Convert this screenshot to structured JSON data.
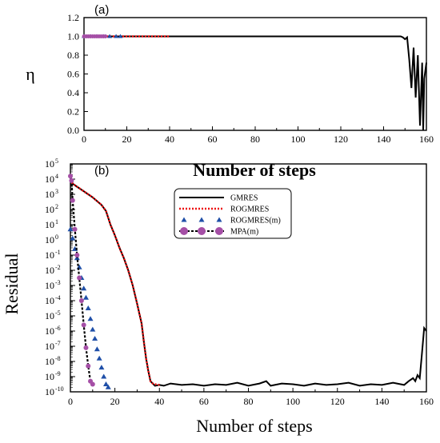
{
  "chart_data": [
    {
      "panel": "(a)",
      "type": "line",
      "xlabel": "Number of steps",
      "ylabel": "η",
      "xlim": [
        0,
        160
      ],
      "ylim": [
        0,
        1.2
      ],
      "xticks": [
        "0",
        "20",
        "40",
        "60",
        "80",
        "100",
        "120",
        "140",
        "160"
      ],
      "yticks": [
        "0.0",
        "0.2",
        "0.4",
        "0.6",
        "0.8",
        "1.0",
        "1.2"
      ],
      "series": [
        {
          "name": "GMRES",
          "color": "#000000",
          "points": [
            [
              0,
              1
            ],
            [
              10,
              1
            ],
            [
              40,
              1
            ],
            [
              80,
              1
            ],
            [
              120,
              1
            ],
            [
              148,
              1
            ],
            [
              149,
              0.99
            ],
            [
              150,
              0.97
            ],
            [
              151,
              0.99
            ],
            [
              152,
              0.75
            ],
            [
              153,
              0.45
            ],
            [
              154,
              0.88
            ],
            [
              155,
              0.35
            ],
            [
              156,
              0.8
            ],
            [
              157,
              0.05
            ],
            [
              158,
              0.72
            ],
            [
              158.5,
              0.0
            ],
            [
              159,
              0.55
            ],
            [
              160,
              0.72
            ]
          ]
        },
        {
          "name": "ROGMRES",
          "color": "#ee1111",
          "points": [
            [
              0,
              1
            ],
            [
              5,
              1
            ],
            [
              10,
              1
            ],
            [
              15,
              1
            ],
            [
              20,
              1
            ],
            [
              25,
              1
            ],
            [
              30,
              1
            ],
            [
              35,
              1
            ],
            [
              40,
              1
            ]
          ]
        },
        {
          "name": "ROGMRES(m)",
          "color": "#1f4fa8",
          "points": [
            [
              0,
              1
            ],
            [
              3,
              1
            ],
            [
              6,
              1
            ],
            [
              9,
              1
            ],
            [
              12,
              1
            ],
            [
              15,
              1
            ],
            [
              17,
              1
            ]
          ]
        },
        {
          "name": "MPA(m)",
          "color": "#a54fa6",
          "points": [
            [
              0,
              1
            ],
            [
              1,
              1
            ],
            [
              2,
              1
            ],
            [
              3,
              1
            ],
            [
              4,
              1
            ],
            [
              5,
              1
            ],
            [
              6,
              1
            ],
            [
              7,
              1
            ],
            [
              8,
              1
            ],
            [
              9,
              1
            ],
            [
              10,
              1
            ]
          ]
        }
      ]
    },
    {
      "panel": "(b)",
      "type": "line",
      "xlabel": "Number of steps",
      "ylabel": "Residual",
      "xlim": [
        0,
        160
      ],
      "ylim": [
        -10,
        5
      ],
      "yscale": "log",
      "xticks": [
        "0",
        "20",
        "40",
        "60",
        "80",
        "100",
        "120",
        "140",
        "160"
      ],
      "ytick_exponents": [
        5,
        4,
        3,
        2,
        1,
        0,
        -1,
        -2,
        -3,
        -4,
        -5,
        -6,
        -7,
        -8,
        -9,
        -10
      ],
      "legend": {
        "position": "top-center",
        "entries": [
          "GMRES",
          "ROGMRES",
          "ROGMRES(m)",
          "MPA(m)"
        ]
      },
      "series": [
        {
          "name": "GMRES",
          "color": "#000000",
          "style": "solid",
          "points_log10": [
            [
              0,
              4.2
            ],
            [
              1,
              3.7
            ],
            [
              3,
              3.5
            ],
            [
              6,
              3.2
            ],
            [
              10,
              2.8
            ],
            [
              14,
              2.3
            ],
            [
              16,
              1.9
            ],
            [
              18,
              1.0
            ],
            [
              20,
              0.3
            ],
            [
              22,
              -0.5
            ],
            [
              24,
              -1.2
            ],
            [
              26,
              -2.0
            ],
            [
              28,
              -3.0
            ],
            [
              30,
              -4.2
            ],
            [
              32,
              -5.5
            ],
            [
              33,
              -6.7
            ],
            [
              34,
              -7.8
            ],
            [
              35,
              -8.6
            ],
            [
              36,
              -9.3
            ],
            [
              37,
              -9.45
            ],
            [
              38,
              -9.6
            ],
            [
              40,
              -9.55
            ],
            [
              42,
              -9.6
            ],
            [
              45,
              -9.45
            ],
            [
              50,
              -9.55
            ],
            [
              55,
              -9.5
            ],
            [
              60,
              -9.6
            ],
            [
              65,
              -9.5
            ],
            [
              70,
              -9.55
            ],
            [
              75,
              -9.4
            ],
            [
              80,
              -9.6
            ],
            [
              85,
              -9.45
            ],
            [
              88,
              -9.3
            ],
            [
              90,
              -9.6
            ],
            [
              95,
              -9.45
            ],
            [
              100,
              -9.5
            ],
            [
              105,
              -9.6
            ],
            [
              110,
              -9.45
            ],
            [
              115,
              -9.55
            ],
            [
              120,
              -9.5
            ],
            [
              125,
              -9.4
            ],
            [
              130,
              -9.6
            ],
            [
              135,
              -9.5
            ],
            [
              140,
              -9.55
            ],
            [
              145,
              -9.4
            ],
            [
              150,
              -9.55
            ],
            [
              152,
              -9.3
            ],
            [
              154,
              -9.1
            ],
            [
              155,
              -9.3
            ],
            [
              156,
              -8.9
            ],
            [
              157,
              -9.1
            ],
            [
              158,
              -7.5
            ],
            [
              159,
              -5.8
            ],
            [
              160,
              -6.0
            ]
          ]
        },
        {
          "name": "ROGMRES",
          "color": "#ee1111",
          "style": "dotted",
          "points_log10": [
            [
              0,
              4.2
            ],
            [
              1,
              3.7
            ],
            [
              3,
              3.5
            ],
            [
              6,
              3.2
            ],
            [
              10,
              2.8
            ],
            [
              14,
              2.3
            ],
            [
              16,
              1.9
            ],
            [
              18,
              1.0
            ],
            [
              20,
              0.3
            ],
            [
              22,
              -0.5
            ],
            [
              24,
              -1.2
            ],
            [
              26,
              -2.0
            ],
            [
              28,
              -3.0
            ],
            [
              30,
              -4.2
            ],
            [
              32,
              -5.5
            ],
            [
              33,
              -6.7
            ],
            [
              34,
              -7.8
            ],
            [
              35,
              -8.6
            ],
            [
              36,
              -9.3
            ],
            [
              37,
              -9.45
            ],
            [
              38,
              -9.5
            ],
            [
              40,
              -9.55
            ]
          ]
        },
        {
          "name": "ROGMRES(m)",
          "color": "#1f4fa8",
          "style": "triangles",
          "points_log10": [
            [
              0,
              0.7
            ],
            [
              1,
              0.1
            ],
            [
              2,
              -0.6
            ],
            [
              3,
              -1.2
            ],
            [
              4,
              -1.8
            ],
            [
              5,
              -2.5
            ],
            [
              6,
              -3.2
            ],
            [
              7,
              -3.8
            ],
            [
              8,
              -4.5
            ],
            [
              9,
              -5.2
            ],
            [
              10,
              -5.9
            ],
            [
              11,
              -6.5
            ],
            [
              12,
              -7.2
            ],
            [
              13,
              -7.8
            ],
            [
              14,
              -8.4
            ],
            [
              15,
              -9.0
            ],
            [
              16,
              -9.5
            ],
            [
              17,
              -9.7
            ]
          ]
        },
        {
          "name": "MPA(m)",
          "color": "#a54fa6",
          "style": "circles",
          "points_log10": [
            [
              0,
              4.2
            ],
            [
              0.5,
              3.9
            ],
            [
              1,
              2.6
            ],
            [
              2,
              0.7
            ],
            [
              3,
              -1.0
            ],
            [
              4,
              -2.5
            ],
            [
              5,
              -4.0
            ],
            [
              6,
              -5.6
            ],
            [
              7,
              -7.1
            ],
            [
              8,
              -8.3
            ],
            [
              9,
              -9.3
            ],
            [
              10,
              -9.5
            ]
          ]
        }
      ]
    }
  ]
}
